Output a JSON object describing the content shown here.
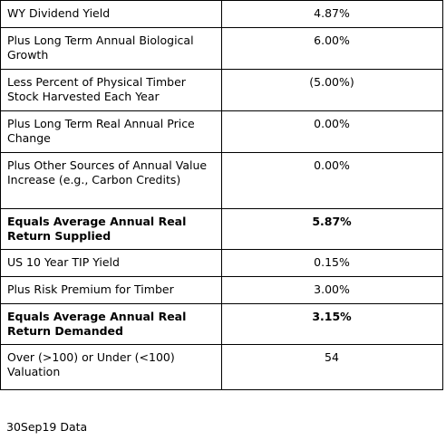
{
  "table": {
    "rows": [
      [
        "WY Dividend Yield",
        "4.87%"
      ],
      [
        "Plus Long Term Annual Biological Growth",
        "6.00%"
      ],
      [
        "Less Percent of Physical Timber Stock Harvested Each Year",
        "(5.00%)"
      ],
      [
        "Plus Long Term Real Annual Price Change",
        "0.00%"
      ],
      [
        "Plus Other Sources of Annual Value Increase (e.g., Carbon Credits)",
        "0.00%"
      ],
      [
        "Equals Average Annual Real Return Supplied",
        "5.87%"
      ],
      [
        "US 10 Year TIP Yield",
        "0.15%"
      ],
      [
        "Plus Risk Premium for Timber",
        "3.00%"
      ],
      [
        "Equals Average Annual Real Return Demanded",
        "3.15%"
      ],
      [
        "Over (>100) or Under (<100) Valuation",
        "54"
      ]
    ]
  },
  "footer": "30Sep19 Data"
}
